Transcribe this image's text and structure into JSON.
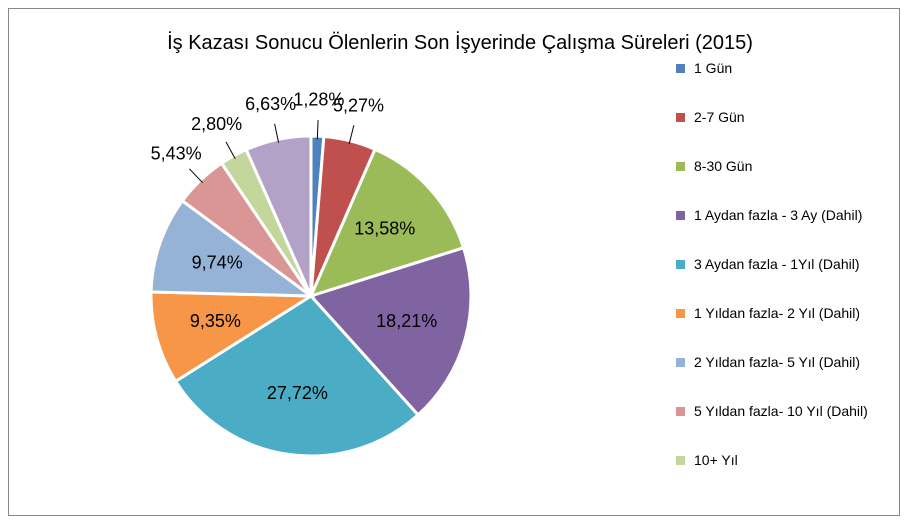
{
  "chart_data": {
    "type": "pie",
    "title": "İş Kazası Sonucu Ölenlerin Son İşyerinde Çalışma Süreleri (2015)",
    "categories": [
      "1 Gün",
      "2-7 Gün",
      "8-30 Gün",
      "1 Aydan fazla - 3 Ay (Dahil)",
      "3 Aydan fazla -  1Yıl (Dahil)",
      "1 Yıldan fazla- 2 Yıl (Dahil)",
      "2 Yıldan fazla- 5 Yıl (Dahil)",
      "5 Yıldan fazla- 10 Yıl (Dahil)",
      "10+ Yıl",
      null
    ],
    "values": [
      1.28,
      5.27,
      13.58,
      18.21,
      27.72,
      9.35,
      9.74,
      5.43,
      2.8,
      6.63
    ],
    "value_labels": [
      "1,28%",
      "5,27%",
      "13,58%",
      "18,21%",
      "27,72%",
      "9,35%",
      "9,74%",
      "5,43%",
      "2,80%",
      "6,63%"
    ],
    "colors": [
      "#4f81bd",
      "#c0504d",
      "#9bbb59",
      "#8064a2",
      "#4bacc6",
      "#f79646",
      "#95b3d7",
      "#d99694",
      "#c3d69b",
      "#b2a2c7"
    ],
    "legend": "right"
  }
}
